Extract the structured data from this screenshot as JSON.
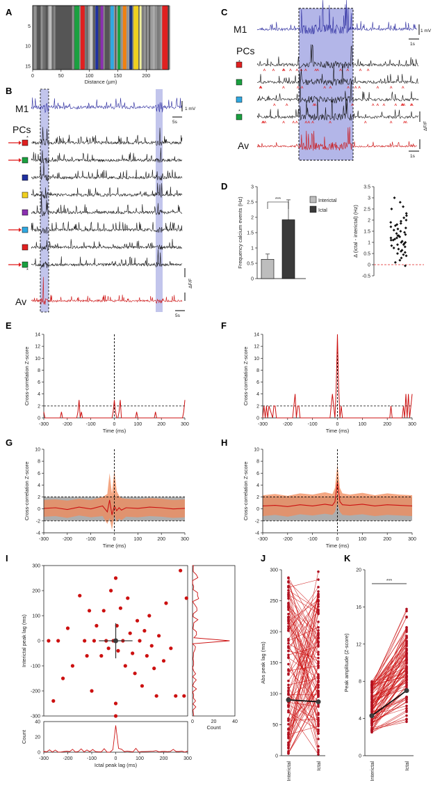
{
  "colors": {
    "red": "#cc1010",
    "blue": "#2a2a9e",
    "shade": "#9a9ee0",
    "orange": "#f08a5a",
    "grey": "#9a9a9a",
    "dark": "#3a3a3a"
  },
  "panel_letters": [
    "A",
    "B",
    "C",
    "D",
    "E",
    "F",
    "G",
    "H",
    "I",
    "J",
    "K"
  ],
  "panelA": {
    "xlabel": "Distance (µm)",
    "xticks": [
      "0",
      "50",
      "100",
      "150",
      "200"
    ],
    "yticks": [
      "5",
      "10",
      "15"
    ]
  },
  "panelB": {
    "m1": "M1",
    "pcs": "PCs",
    "av": "Av",
    "scale_mv": "1 mV",
    "scale_t": "5s",
    "scale_f": "ΔF/F",
    "star": "*",
    "squares": [
      "red",
      "green",
      "blue",
      "yellow",
      "purple",
      "lightblue",
      "red",
      "green"
    ],
    "arrows": [
      true,
      true,
      false,
      false,
      false,
      true,
      false,
      true
    ]
  },
  "panelC": {
    "m1": "M1",
    "pcs": "PCs",
    "av": "Av",
    "scale_mv": "1 mV",
    "scale_t": "1s",
    "scale_f": "ΔF/F",
    "star": "*",
    "squares": [
      "red",
      "green",
      "lightblue",
      "green"
    ]
  },
  "chart_data": [
    {
      "panel": "D-left",
      "type": "bar",
      "ylabel": "Frequency calcium events (Hz)",
      "categories": [
        "Interictal",
        "Ictal"
      ],
      "values": [
        0.63,
        1.92
      ],
      "errors": [
        0.17,
        0.65
      ],
      "ylim": [
        0,
        3
      ],
      "yticks": [
        "0",
        "0.5",
        "1",
        "1.5",
        "2",
        "2.5",
        "3"
      ],
      "legend": [
        "Interictal",
        "Ictal"
      ],
      "sig": "***"
    },
    {
      "panel": "D-right",
      "type": "scatter",
      "ylabel": "Δ (ictal - interictal) (Hz)",
      "ylim": [
        -0.5,
        3.5
      ],
      "yticks": [
        "-0.5",
        "0",
        "0.5",
        "1",
        "1.5",
        "2",
        "2.5",
        "3",
        "3.5"
      ],
      "values": [
        3.0,
        2.8,
        2.6,
        2.5,
        2.3,
        2.2,
        2.1,
        2.0,
        1.95,
        1.9,
        1.85,
        1.8,
        1.75,
        1.7,
        1.65,
        1.6,
        1.55,
        1.5,
        1.45,
        1.4,
        1.35,
        1.3,
        1.3,
        1.25,
        1.2,
        1.2,
        1.15,
        1.1,
        1.1,
        1.05,
        1.0,
        1.0,
        0.95,
        0.9,
        0.9,
        0.85,
        0.8,
        0.75,
        0.7,
        0.65,
        0.6,
        0.55,
        0.5,
        0.45,
        0.4,
        0.3,
        0.2,
        0.1,
        -0.05
      ]
    },
    {
      "panel": "E",
      "type": "line",
      "xlabel": "Time (ms)",
      "ylabel": "Cross-correlation Z-score",
      "xlim": [
        -300,
        300
      ],
      "ylim": [
        0,
        14
      ],
      "xticks": [
        "-300",
        "-200",
        "-100",
        "0",
        "100",
        "200",
        "300"
      ],
      "yticks": [
        "0",
        "2",
        "4",
        "6",
        "8",
        "10",
        "12",
        "14"
      ],
      "threshold": 2,
      "x": [
        -300,
        -295,
        -290,
        -230,
        -225,
        -220,
        -160,
        -155,
        -150,
        -145,
        -140,
        -135,
        -130,
        -10,
        -5,
        0,
        5,
        10,
        15,
        20,
        25,
        30,
        90,
        95,
        100,
        170,
        175,
        180,
        290,
        295,
        300
      ],
      "y": [
        1,
        0,
        0,
        0,
        1,
        0,
        0,
        1,
        3,
        0,
        1,
        0,
        0,
        0,
        1,
        3,
        1,
        0,
        0,
        1,
        3,
        0,
        0,
        1,
        0,
        0,
        1,
        0,
        0,
        1,
        3
      ]
    },
    {
      "panel": "F",
      "type": "line",
      "xlabel": "Time (ms)",
      "ylabel": "Cross-correlation Z-score",
      "xlim": [
        -300,
        300
      ],
      "ylim": [
        0,
        14
      ],
      "xticks": [
        "-300",
        "-200",
        "-100",
        "0",
        "100",
        "200",
        "300"
      ],
      "yticks": [
        "0",
        "2",
        "4",
        "6",
        "8",
        "10",
        "12",
        "14"
      ],
      "threshold": 2,
      "x": [
        -300,
        -295,
        -290,
        -285,
        -280,
        -275,
        -260,
        -255,
        -250,
        -245,
        -180,
        -175,
        -170,
        -165,
        -160,
        -155,
        -150,
        -30,
        -25,
        -20,
        -15,
        -10,
        -5,
        0,
        5,
        10,
        15,
        20,
        210,
        215,
        220,
        260,
        265,
        270,
        275,
        280,
        285,
        290,
        295,
        300
      ],
      "y": [
        0,
        2,
        0,
        2,
        0,
        2,
        0,
        2,
        2,
        0,
        0,
        2,
        4,
        0,
        2,
        2,
        0,
        0,
        2,
        4,
        2,
        0,
        5,
        14,
        5,
        0,
        2,
        0,
        0,
        2,
        0,
        0,
        2,
        0,
        4,
        0,
        4,
        0,
        2,
        4
      ]
    },
    {
      "panel": "G",
      "type": "area",
      "xlabel": "Time (ms)",
      "ylabel": "Cross-correlation Z-score",
      "xlim": [
        -300,
        300
      ],
      "ylim": [
        -4,
        10
      ],
      "xticks": [
        "-300",
        "-200",
        "-100",
        "0",
        "100",
        "200",
        "300"
      ],
      "yticks": [
        "-4",
        "-2",
        "0",
        "2",
        "4",
        "6",
        "8",
        "10"
      ],
      "threshold": [
        -2,
        2
      ],
      "x": [
        -300,
        -250,
        -200,
        -150,
        -100,
        -50,
        -30,
        -20,
        -10,
        0,
        10,
        20,
        30,
        50,
        100,
        150,
        200,
        250,
        300
      ],
      "mean": [
        0.1,
        0.2,
        -0.1,
        0.3,
        0.0,
        0.5,
        -0.5,
        1.5,
        -1.0,
        0.5,
        -0.3,
        0.2,
        -0.2,
        0.2,
        0.1,
        0.3,
        0.2,
        0.0,
        0.1
      ],
      "upper": [
        1.5,
        1.6,
        1.4,
        1.7,
        1.5,
        2.0,
        2.5,
        6.0,
        2.5,
        6.5,
        3.0,
        2.2,
        1.8,
        1.7,
        1.6,
        1.8,
        1.7,
        1.5,
        1.6
      ],
      "lower": [
        -1.3,
        -1.2,
        -1.5,
        -1.1,
        -1.4,
        -1.2,
        -2.5,
        -1.5,
        -3.5,
        -1.0,
        -2.2,
        -1.6,
        -1.9,
        -1.3,
        -1.4,
        -1.2,
        -1.3,
        -1.5,
        -1.4
      ]
    },
    {
      "panel": "H",
      "type": "area",
      "xlabel": "Time (ms)",
      "ylabel": "Cross-correlation Z-score",
      "xlim": [
        -300,
        300
      ],
      "ylim": [
        -4,
        10
      ],
      "xticks": [
        "-300",
        "-200",
        "-100",
        "0",
        "100",
        "200",
        "300"
      ],
      "yticks": [
        "-4",
        "-2",
        "0",
        "2",
        "4",
        "6",
        "8",
        "10"
      ],
      "threshold": [
        -2,
        2
      ],
      "x": [
        -300,
        -250,
        -200,
        -150,
        -100,
        -50,
        -20,
        -10,
        0,
        10,
        20,
        50,
        100,
        150,
        200,
        250,
        300
      ],
      "mean": [
        0.5,
        0.6,
        0.4,
        0.7,
        0.5,
        0.8,
        0.6,
        1.2,
        4.5,
        1.2,
        0.7,
        0.6,
        0.8,
        0.5,
        0.7,
        0.6,
        0.5
      ],
      "upper": [
        2.3,
        2.5,
        2.2,
        2.6,
        2.4,
        2.8,
        2.5,
        3.5,
        7.5,
        3.5,
        2.6,
        2.4,
        2.7,
        2.3,
        2.6,
        2.4,
        2.3
      ],
      "lower": [
        -1.2,
        -1.0,
        -1.3,
        -0.9,
        -1.1,
        -0.8,
        -1.0,
        -0.5,
        1.0,
        -0.5,
        -1.0,
        -1.1,
        -0.9,
        -1.2,
        -1.0,
        -1.1,
        -1.2
      ]
    },
    {
      "panel": "I",
      "type": "scatter",
      "xlabel": "Ictal peak lag (ms)",
      "ylabel": "Interictal peak lag (ms)",
      "xlim": [
        -300,
        300
      ],
      "ylim": [
        -300,
        300
      ],
      "xticks": [
        "-300",
        "-200",
        "-100",
        "0",
        "100",
        "200",
        "300"
      ],
      "yticks": [
        "-300",
        "-200",
        "-100",
        "0",
        "100",
        "200",
        "300"
      ],
      "points": [
        [
          -280,
          0
        ],
        [
          -260,
          -240
        ],
        [
          -240,
          0
        ],
        [
          -220,
          -150
        ],
        [
          -200,
          50
        ],
        [
          -180,
          -100
        ],
        [
          -150,
          180
        ],
        [
          -130,
          0
        ],
        [
          -120,
          -60
        ],
        [
          -110,
          120
        ],
        [
          -100,
          -200
        ],
        [
          -90,
          0
        ],
        [
          -80,
          60
        ],
        [
          -60,
          -60
        ],
        [
          -50,
          120
        ],
        [
          -40,
          0
        ],
        [
          -30,
          -30
        ],
        [
          -20,
          200
        ],
        [
          -10,
          0
        ],
        [
          0,
          0
        ],
        [
          0,
          250
        ],
        [
          0,
          -250
        ],
        [
          0,
          -300
        ],
        [
          5,
          60
        ],
        [
          10,
          -40
        ],
        [
          20,
          130
        ],
        [
          30,
          0
        ],
        [
          40,
          -100
        ],
        [
          50,
          170
        ],
        [
          60,
          30
        ],
        [
          70,
          -50
        ],
        [
          80,
          -130
        ],
        [
          90,
          80
        ],
        [
          100,
          0
        ],
        [
          110,
          -180
        ],
        [
          120,
          40
        ],
        [
          130,
          -60
        ],
        [
          140,
          100
        ],
        [
          150,
          -20
        ],
        [
          160,
          -110
        ],
        [
          170,
          -220
        ],
        [
          180,
          20
        ],
        [
          200,
          -80
        ],
        [
          210,
          150
        ],
        [
          230,
          -30
        ],
        [
          250,
          -220
        ],
        [
          270,
          280
        ],
        [
          285,
          -220
        ],
        [
          295,
          170
        ]
      ],
      "mean": [
        0,
        0
      ],
      "sd_x": 70,
      "sd_y": 70,
      "hist_right": {
        "xlabel": "Count",
        "xticks": [
          "0",
          "20",
          "40"
        ]
      },
      "hist_bottom": {
        "ylabel": "Count",
        "yticks": [
          "0",
          "20",
          "40"
        ],
        "peak": 35
      }
    },
    {
      "panel": "J",
      "type": "paired",
      "ylabel": "Abs peak lag (ms)",
      "categories": [
        "Interictal",
        "Ictal"
      ],
      "ylim": [
        0,
        300
      ],
      "yticks": [
        "0",
        "50",
        "100",
        "150",
        "200",
        "250",
        "300"
      ],
      "mean": [
        90,
        87
      ]
    },
    {
      "panel": "K",
      "type": "paired",
      "ylabel": "Peak amplitude (Z-score)",
      "categories": [
        "Interictal",
        "Ictal"
      ],
      "ylim": [
        0,
        20
      ],
      "yticks": [
        "0",
        "4",
        "8",
        "12",
        "16",
        "20"
      ],
      "mean": [
        4.3,
        7.0
      ],
      "sig": "***"
    }
  ]
}
